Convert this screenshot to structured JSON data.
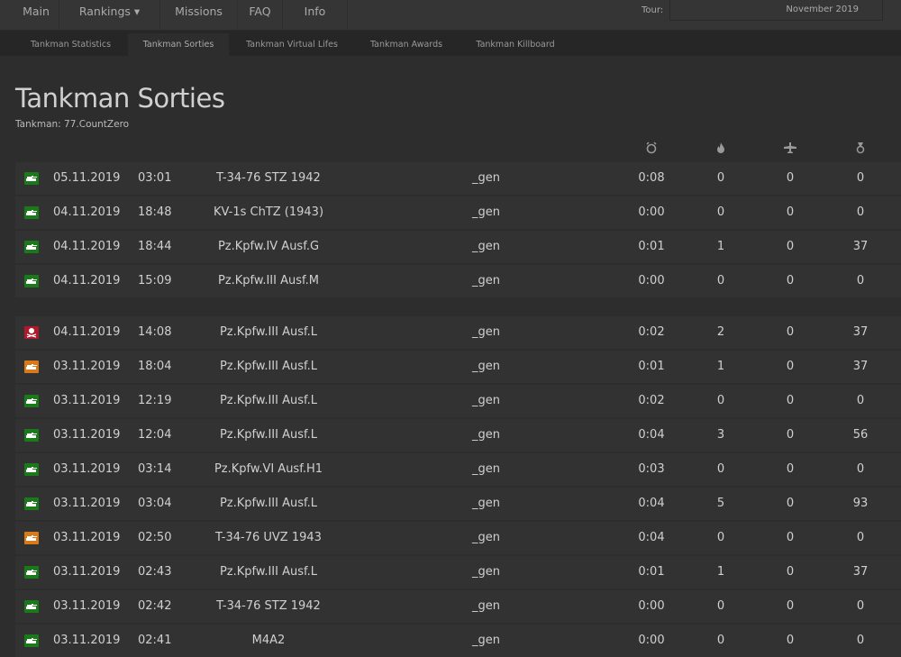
{
  "nav": {
    "items": [
      "Main",
      "Rankings ▾",
      "Missions",
      "FAQ",
      "Info"
    ],
    "tour_label": "Tour:",
    "tour_value": "November 2019"
  },
  "tabs": [
    "Tankman Statistics",
    "Tankman Sorties",
    "Tankman Virtual Lifes",
    "Tankman Awards",
    "Tankman Killboard"
  ],
  "active_tab": 1,
  "page": {
    "title": "Tankman Sorties",
    "subtitle": "Tankman: 77.CountZero"
  },
  "columns_icons": [
    "clock-icon",
    "fire-icon",
    "plane-icon",
    "medal-icon"
  ],
  "status_colors": {
    "ok": "#1a7a1a",
    "dead": "#b0182b",
    "damaged": "#d97a1a"
  },
  "groups": [
    [
      {
        "status": "ok",
        "date": "05.11.2019",
        "time": "03:01",
        "vehicle": "T-34-76 STZ 1942",
        "player": "_gen",
        "duration": "0:08",
        "kills": "0",
        "air": "0",
        "score": "0"
      },
      {
        "status": "ok",
        "date": "04.11.2019",
        "time": "18:48",
        "vehicle": "KV-1s ChTZ (1943)",
        "player": "_gen",
        "duration": "0:00",
        "kills": "0",
        "air": "0",
        "score": "0"
      },
      {
        "status": "ok",
        "date": "04.11.2019",
        "time": "18:44",
        "vehicle": "Pz.Kpfw.IV Ausf.G",
        "player": "_gen",
        "duration": "0:01",
        "kills": "1",
        "air": "0",
        "score": "37"
      },
      {
        "status": "ok",
        "date": "04.11.2019",
        "time": "15:09",
        "vehicle": "Pz.Kpfw.III Ausf.M",
        "player": "_gen",
        "duration": "0:00",
        "kills": "0",
        "air": "0",
        "score": "0"
      }
    ],
    [
      {
        "status": "dead",
        "date": "04.11.2019",
        "time": "14:08",
        "vehicle": "Pz.Kpfw.III Ausf.L",
        "player": "_gen",
        "duration": "0:02",
        "kills": "2",
        "air": "0",
        "score": "37"
      },
      {
        "status": "damaged",
        "date": "03.11.2019",
        "time": "18:04",
        "vehicle": "Pz.Kpfw.III Ausf.L",
        "player": "_gen",
        "duration": "0:01",
        "kills": "1",
        "air": "0",
        "score": "37"
      },
      {
        "status": "ok",
        "date": "03.11.2019",
        "time": "12:19",
        "vehicle": "Pz.Kpfw.III Ausf.L",
        "player": "_gen",
        "duration": "0:02",
        "kills": "0",
        "air": "0",
        "score": "0"
      },
      {
        "status": "ok",
        "date": "03.11.2019",
        "time": "12:04",
        "vehicle": "Pz.Kpfw.III Ausf.L",
        "player": "_gen",
        "duration": "0:04",
        "kills": "3",
        "air": "0",
        "score": "56"
      },
      {
        "status": "ok",
        "date": "03.11.2019",
        "time": "03:14",
        "vehicle": "Pz.Kpfw.VI Ausf.H1",
        "player": "_gen",
        "duration": "0:03",
        "kills": "0",
        "air": "0",
        "score": "0"
      },
      {
        "status": "ok",
        "date": "03.11.2019",
        "time": "03:04",
        "vehicle": "Pz.Kpfw.III Ausf.L",
        "player": "_gen",
        "duration": "0:04",
        "kills": "5",
        "air": "0",
        "score": "93"
      },
      {
        "status": "damaged",
        "date": "03.11.2019",
        "time": "02:50",
        "vehicle": "T-34-76 UVZ 1943",
        "player": "_gen",
        "duration": "0:04",
        "kills": "0",
        "air": "0",
        "score": "0"
      },
      {
        "status": "ok",
        "date": "03.11.2019",
        "time": "02:43",
        "vehicle": "Pz.Kpfw.III Ausf.L",
        "player": "_gen",
        "duration": "0:01",
        "kills": "1",
        "air": "0",
        "score": "37"
      },
      {
        "status": "ok",
        "date": "03.11.2019",
        "time": "02:42",
        "vehicle": "T-34-76 STZ 1942",
        "player": "_gen",
        "duration": "0:00",
        "kills": "0",
        "air": "0",
        "score": "0"
      },
      {
        "status": "ok",
        "date": "03.11.2019",
        "time": "02:41",
        "vehicle": "M4A2",
        "player": "_gen",
        "duration": "0:00",
        "kills": "0",
        "air": "0",
        "score": "0"
      }
    ]
  ]
}
